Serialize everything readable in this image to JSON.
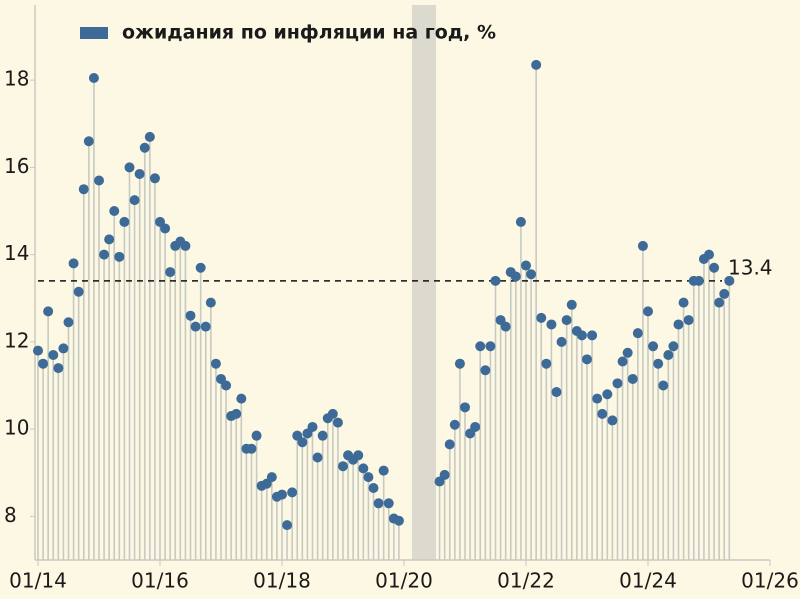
{
  "chart_data": {
    "type": "lollipop",
    "x": [
      "01/14",
      "02/14",
      "03/14",
      "04/14",
      "05/14",
      "06/14",
      "07/14",
      "08/14",
      "09/14",
      "10/14",
      "11/14",
      "12/14",
      "01/15",
      "02/15",
      "03/15",
      "04/15",
      "05/15",
      "06/15",
      "07/15",
      "08/15",
      "09/15",
      "10/15",
      "11/15",
      "12/15",
      "01/16",
      "02/16",
      "03/16",
      "04/16",
      "05/16",
      "06/16",
      "07/16",
      "08/16",
      "09/16",
      "10/16",
      "11/16",
      "12/16",
      "01/17",
      "02/17",
      "03/17",
      "04/17",
      "05/17",
      "06/17",
      "07/17",
      "08/17",
      "09/17",
      "10/17",
      "11/17",
      "12/17",
      "01/18",
      "02/18",
      "03/18",
      "04/18",
      "05/18",
      "06/18",
      "07/18",
      "08/18",
      "09/18",
      "10/18",
      "11/18",
      "12/18",
      "01/19",
      "02/19",
      "03/19",
      "04/19",
      "05/19",
      "06/19",
      "07/19",
      "08/19",
      "09/19",
      "10/19",
      "11/19",
      "12/19",
      "01/20",
      "02/20",
      "03/20",
      "04/20",
      "05/20",
      "06/20",
      "07/20",
      "08/20",
      "09/20",
      "10/20",
      "11/20",
      "12/20",
      "01/21",
      "02/21",
      "03/21",
      "04/21",
      "05/21",
      "06/21",
      "07/21",
      "08/21",
      "09/21",
      "10/21",
      "11/21",
      "12/21",
      "01/22",
      "02/22",
      "03/22",
      "04/22",
      "05/22",
      "06/22",
      "07/22",
      "08/22",
      "09/22",
      "10/22",
      "11/22",
      "12/22",
      "01/23",
      "02/23",
      "03/23",
      "04/23",
      "05/23",
      "06/23",
      "07/23",
      "08/23",
      "09/23",
      "10/23",
      "11/23",
      "12/23",
      "01/24",
      "02/24",
      "03/24",
      "04/24",
      "05/24",
      "06/24",
      "07/24",
      "08/24",
      "09/24",
      "10/24",
      "11/24",
      "12/24",
      "01/25",
      "02/25",
      "03/25",
      "04/25",
      "05/25"
    ],
    "series": [
      {
        "name": "ожидания по инфляции на год, %",
        "color": "#3d6a96",
        "values": [
          11.8,
          11.5,
          12.7,
          11.7,
          11.4,
          11.85,
          12.45,
          13.8,
          13.15,
          15.5,
          16.6,
          18.05,
          15.7,
          14.0,
          14.35,
          15.0,
          13.95,
          14.75,
          16.0,
          15.25,
          15.85,
          16.45,
          16.7,
          15.75,
          14.75,
          14.6,
          13.6,
          14.2,
          14.3,
          14.2,
          12.6,
          12.35,
          13.7,
          12.35,
          12.9,
          11.5,
          11.15,
          11.0,
          10.3,
          10.35,
          10.7,
          9.55,
          9.55,
          9.85,
          8.7,
          8.75,
          8.9,
          8.45,
          8.5,
          7.8,
          8.55,
          9.85,
          9.7,
          9.9,
          10.05,
          9.35,
          9.85,
          10.25,
          10.35,
          10.15,
          9.15,
          9.4,
          9.3,
          9.4,
          9.1,
          8.9,
          8.65,
          8.3,
          9.05,
          8.3,
          7.95,
          7.9,
          null,
          null,
          null,
          null,
          null,
          null,
          null,
          8.8,
          8.95,
          9.65,
          10.1,
          11.5,
          10.5,
          9.9,
          10.05,
          11.9,
          11.35,
          11.9,
          13.4,
          12.5,
          12.35,
          13.6,
          13.5,
          14.75,
          13.75,
          13.55,
          18.35,
          12.55,
          11.5,
          12.4,
          10.85,
          12.0,
          12.5,
          12.85,
          12.25,
          12.15,
          11.6,
          12.15,
          10.7,
          10.35,
          10.8,
          10.2,
          11.05,
          11.55,
          11.75,
          11.15,
          12.2,
          14.2,
          12.7,
          11.9,
          11.5,
          11.0,
          11.7,
          11.9,
          12.4,
          12.9,
          12.5,
          13.4,
          13.4,
          13.9,
          14.0,
          13.7,
          12.9,
          13.1,
          13.4
        ]
      }
    ],
    "xlim": [
      "01/14",
      "01/26"
    ],
    "xticks": [
      "01/14",
      "01/16",
      "01/18",
      "01/20",
      "01/22",
      "01/24",
      "01/26"
    ],
    "ylim": [
      7,
      19.7
    ],
    "yticks": [
      8,
      10,
      12,
      14,
      16,
      18
    ],
    "reference_line": 13.4,
    "stem_color": "#c6cac2"
  }
}
